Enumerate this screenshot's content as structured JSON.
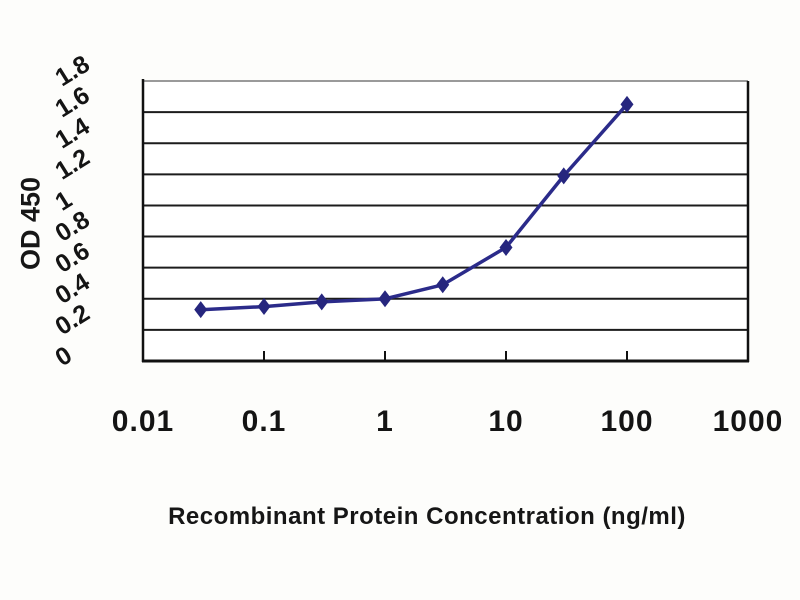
{
  "figure": {
    "background": "#fdfdfb",
    "plot_background": "#ffffff"
  },
  "chart_data": {
    "type": "line",
    "x": [
      0.03,
      0.1,
      0.3,
      1,
      3,
      10,
      30,
      100
    ],
    "series": [
      {
        "name": "OD 450",
        "values": [
          0.33,
          0.35,
          0.38,
          0.4,
          0.49,
          0.73,
          1.19,
          1.65
        ]
      }
    ],
    "title": "",
    "xlabel": "Recombinant Protein Concentration (ng/ml)",
    "ylabel": "OD 450",
    "x_scale": "log",
    "xlim": [
      0.01,
      1000
    ],
    "ylim": [
      0,
      1.8
    ],
    "x_tick_values": [
      0.01,
      0.1,
      1,
      10,
      100,
      1000
    ],
    "x_tick_labels": [
      "0.01",
      "0.1",
      "1",
      "10",
      "100",
      "1000"
    ],
    "y_tick_values": [
      0,
      0.2,
      0.4,
      0.6,
      0.8,
      1,
      1.2,
      1.4,
      1.6,
      1.8
    ],
    "y_tick_labels": [
      "0",
      "0.2",
      "0.4",
      "0.6",
      "0.8",
      "1",
      "1.2",
      "1.4",
      "1.6",
      "1.8"
    ],
    "grid": "horizontal",
    "legend": "none",
    "line_color": "#2b2b8a",
    "marker": "diamond",
    "marker_color": "#26267e",
    "gridline_color": "#1c1c1c",
    "axis_color": "#111111",
    "plot_top_border_color": "#9a9a9a",
    "tick_label_color": "#141414"
  }
}
